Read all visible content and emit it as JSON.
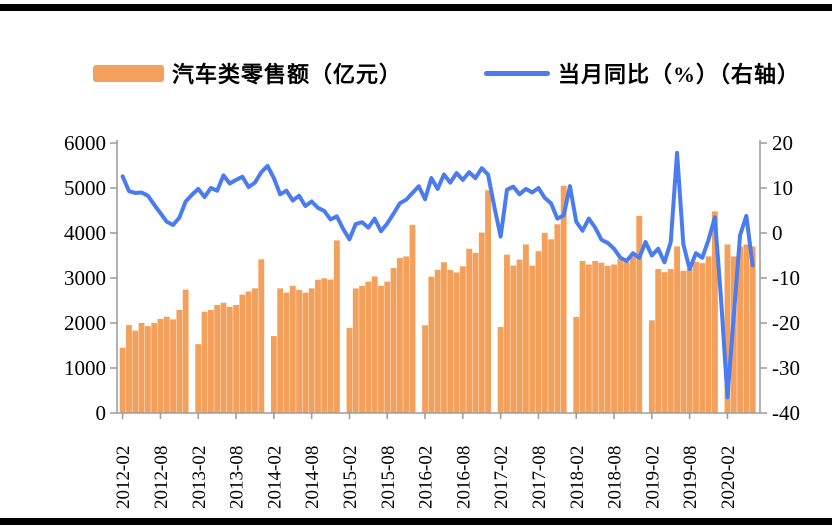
{
  "legend": {
    "bar_label": "汽车类零售额（亿元）",
    "line_label": "当月同比（%）（右轴）"
  },
  "colors": {
    "bar": "#F5A05A",
    "line": "#4A7CF0",
    "axis": "#9e9e9e",
    "text": "#000000",
    "frame": "#000000"
  },
  "chart_data": {
    "type": "bar+line",
    "title": "",
    "x_range_note": "monthly 2012-02 to 2020-06, January values missing (gap)",
    "bar_series": {
      "label": "汽车类零售额（亿元）",
      "axis": "left",
      "values": [
        1450,
        1955,
        1830,
        2000,
        1930,
        2000,
        2090,
        2140,
        2080,
        2290,
        2740,
        null,
        1530,
        2250,
        2290,
        2400,
        2450,
        2360,
        2400,
        2630,
        2700,
        2770,
        3415,
        null,
        1710,
        2770,
        2675,
        2825,
        2735,
        2675,
        2770,
        2960,
        2995,
        2965,
        3835,
        null,
        1890,
        2770,
        2825,
        2920,
        3035,
        2825,
        2920,
        3220,
        3445,
        3480,
        4180,
        null,
        1950,
        3030,
        3180,
        3350,
        3180,
        3125,
        3260,
        3650,
        3560,
        4010,
        4950,
        null,
        1910,
        3520,
        3275,
        3410,
        3745,
        3275,
        3595,
        4005,
        3860,
        4195,
        5050,
        null,
        2135,
        3380,
        3300,
        3380,
        3340,
        3270,
        3300,
        3420,
        3350,
        3480,
        4380,
        null,
        2060,
        3200,
        3130,
        3200,
        3700,
        3160,
        3210,
        3360,
        3330,
        3480,
        4480,
        null,
        3745,
        3480,
        3700,
        3745,
        3700
      ]
    },
    "line_series": {
      "label": "当月同比（%）（右轴）",
      "axis": "right",
      "values": [
        12.6,
        9.3,
        8.9,
        9.0,
        8.3,
        6.3,
        4.4,
        2.5,
        1.8,
        3.4,
        7.0,
        8.5,
        9.8,
        8.0,
        10.0,
        9.4,
        12.8,
        11.0,
        11.8,
        12.5,
        10.2,
        11.2,
        13.5,
        14.9,
        12.2,
        8.6,
        9.4,
        7.2,
        8.3,
        6.0,
        7.0,
        5.6,
        4.9,
        3.0,
        3.7,
        0.9,
        -1.4,
        2.0,
        2.4,
        1.2,
        3.2,
        0.4,
        2.1,
        4.3,
        6.6,
        7.4,
        8.9,
        10.4,
        7.5,
        12.2,
        9.8,
        13.0,
        11.2,
        13.3,
        11.8,
        13.5,
        12.2,
        14.4,
        13.0,
        5.8,
        -0.8,
        9.6,
        10.3,
        8.6,
        9.8,
        9.0,
        10.0,
        7.8,
        6.6,
        3.2,
        3.9,
        10.4,
        2.5,
        0.5,
        3.2,
        1.2,
        -1.5,
        -2.2,
        -3.5,
        -5.5,
        -6.2,
        -4.5,
        -5.5,
        -2.0,
        -5.0,
        -3.5,
        -6.5,
        -2.0,
        17.8,
        -2.5,
        -8.0,
        -4.5,
        -5.5,
        -1.5,
        3.5,
        -15.0,
        -36.5,
        -18.5,
        -0.5,
        3.8,
        -7.2
      ]
    },
    "x_axis": {
      "tick_labels": [
        "2012-02",
        "2012-08",
        "2013-02",
        "2013-08",
        "2014-02",
        "2014-08",
        "2015-02",
        "2015-08",
        "2016-02",
        "2016-08",
        "2017-02",
        "2017-08",
        "2018-02",
        "2018-08",
        "2019-02",
        "2019-08",
        "2020-02"
      ],
      "tick_slots": [
        0,
        6,
        12,
        18,
        24,
        30,
        36,
        42,
        48,
        54,
        60,
        66,
        72,
        78,
        84,
        90,
        96
      ]
    },
    "y_left": {
      "ticks": [
        0,
        1000,
        2000,
        3000,
        4000,
        5000,
        6000
      ],
      "range": [
        0,
        6000
      ]
    },
    "y_right": {
      "ticks": [
        20,
        10,
        0,
        -10,
        -20,
        -30,
        -40
      ],
      "range": [
        -40,
        20
      ]
    },
    "grid": "off",
    "legend_position": "top"
  }
}
